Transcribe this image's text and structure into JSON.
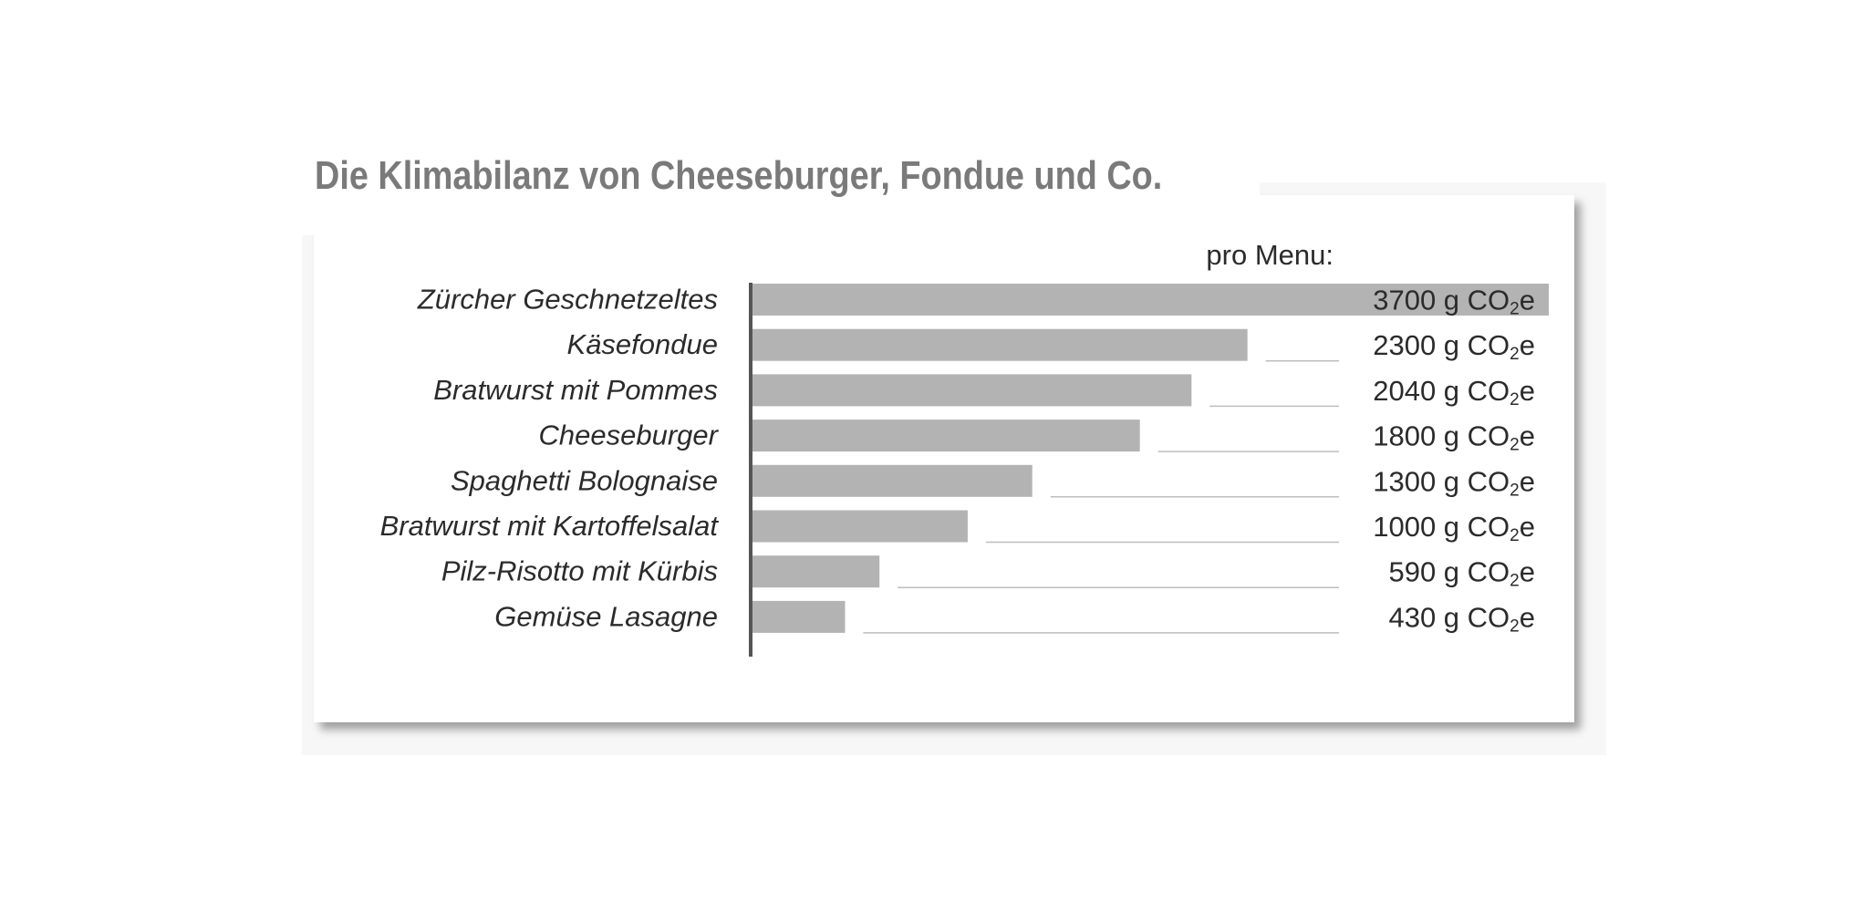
{
  "chart_data": {
    "type": "bar",
    "orientation": "horizontal",
    "title": "Die Klimabilanz von Cheeseburger, Fondue und Co.",
    "value_header": "pro Menu:",
    "unit_prefix": "g CO",
    "unit_subscript": "2",
    "unit_suffix": "e",
    "categories": [
      "Zürcher Geschnetzeltes",
      "Käsefondue",
      "Bratwurst mit Pommes",
      "Cheeseburger",
      "Spaghetti Bolognaise",
      "Bratwurst mit Kartoffelsalat",
      "Pilz-Risotto mit Kürbis",
      "Gemüse Lasagne"
    ],
    "values": [
      3700,
      2300,
      2040,
      1800,
      1300,
      1000,
      590,
      430
    ],
    "value_labels": [
      "3700",
      "2300",
      "2040",
      "1800",
      "1300",
      "1000",
      "590",
      "430"
    ],
    "xlim": [
      0,
      3700
    ],
    "grid": false,
    "legend": "none",
    "colors": {
      "bar": "#b3b3b3",
      "axis": "#555555",
      "title": "#7a7a7a",
      "label": "#2b2b2b",
      "leader": "#bdbdbd"
    }
  }
}
